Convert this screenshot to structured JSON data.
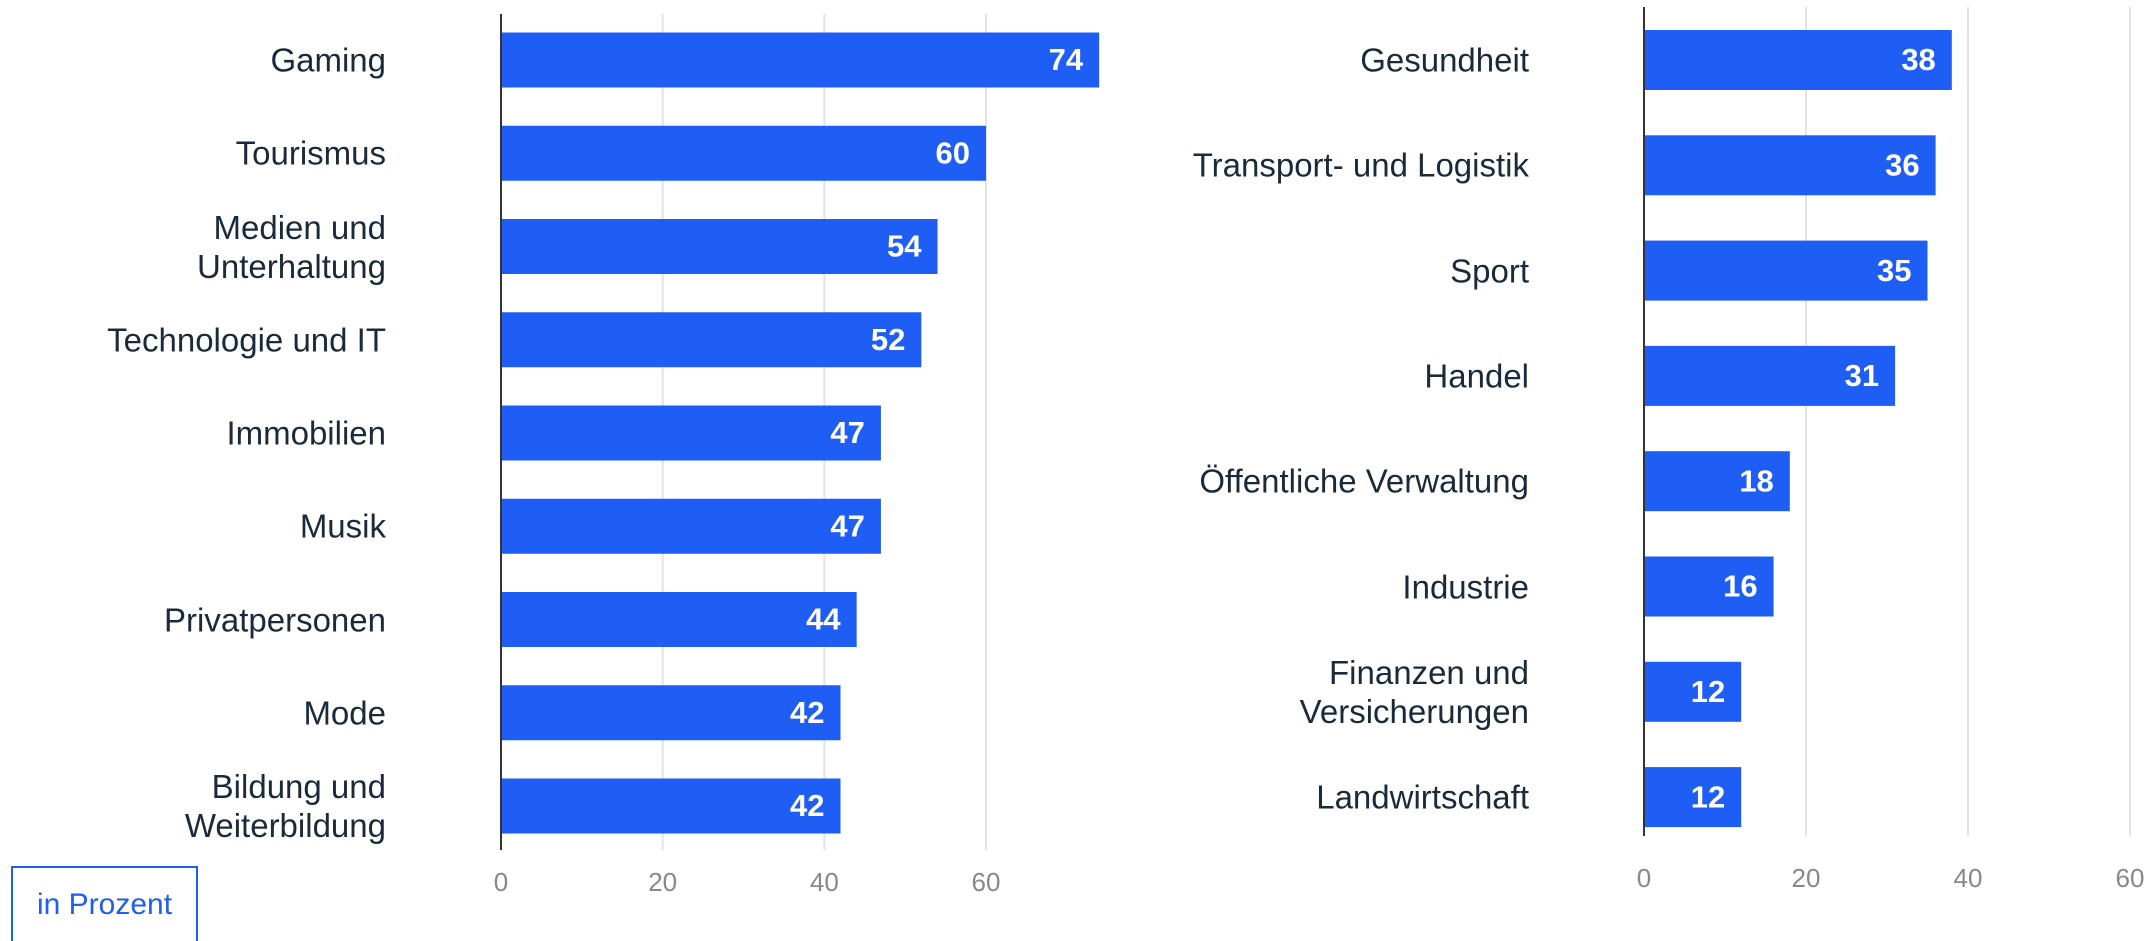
{
  "chart_data": [
    {
      "type": "barh",
      "color": "#1e5ef5",
      "categories": [
        "Gaming",
        "Tourismus",
        "Medien und\nUnterhaltung",
        "Technologie und IT",
        "Immobilien",
        "Musik",
        "Privatpersonen",
        "Mode",
        "Bildung und\nWeiterbildung"
      ],
      "values": [
        74,
        60,
        54,
        52,
        47,
        47,
        44,
        42,
        42
      ],
      "xlim": [
        0,
        78
      ],
      "xticks": [
        0,
        20,
        40,
        60
      ],
      "grid": true
    },
    {
      "type": "barh",
      "color": "#1e5ef5",
      "categories": [
        "Gesundheit",
        "Transport- und Logistik",
        "Sport",
        "Handel",
        "Öffentliche Verwaltung",
        "Industrie",
        "Finanzen und\nVersicherungen",
        "Landwirtschaft"
      ],
      "values": [
        38,
        36,
        35,
        31,
        18,
        16,
        12,
        12
      ],
      "xlim": [
        0,
        62
      ],
      "xticks": [
        0,
        20,
        40,
        60
      ],
      "grid": true
    }
  ],
  "note": "in Prozent"
}
